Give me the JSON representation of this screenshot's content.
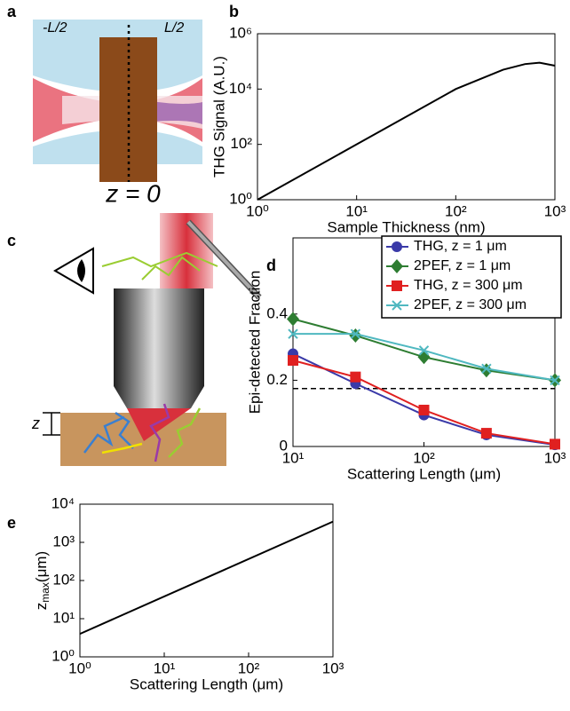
{
  "diagrams": [
    {
      "label": "a",
      "left_label": "-L/2",
      "right_label": "L/2",
      "bottom_label": "z = 0"
    },
    {
      "label": "c",
      "depth_label": "z"
    }
  ],
  "chart_data": [
    {
      "type": "line",
      "label": "b",
      "xlabel": "Sample Thickness (nm)",
      "ylabel": "THG Signal (A.U.)",
      "xscale": "log",
      "yscale": "log",
      "x": [
        1,
        10,
        100,
        300,
        500,
        700,
        1000
      ],
      "series": [
        {
          "color": "#000000",
          "values": [
            1,
            100,
            10000,
            50000,
            80000,
            90000,
            70000
          ]
        }
      ],
      "xlim": [
        1,
        1000
      ],
      "ylim": [
        1,
        1000000
      ],
      "xticks": [
        {
          "value": 1,
          "label": "10⁰"
        },
        {
          "value": 10,
          "label": "10¹"
        },
        {
          "value": 100,
          "label": "10²"
        },
        {
          "value": 1000,
          "label": "10³"
        }
      ],
      "yticks": [
        {
          "value": 1,
          "label": "10⁰"
        },
        {
          "value": 100,
          "label": "10²"
        },
        {
          "value": 10000,
          "label": "10⁴"
        },
        {
          "value": 1000000,
          "label": "10⁶"
        }
      ]
    },
    {
      "type": "line",
      "label": "d",
      "xlabel": "Scattering Length (μm)",
      "ylabel": "Epi-detected Fraction",
      "xscale": "log",
      "yscale": "linear",
      "x": [
        10,
        30,
        100,
        300,
        1000
      ],
      "series": [
        {
          "name": "THG, z = 1 μm",
          "color": "#3a3aa8",
          "marker": "circle",
          "values": [
            0.28,
            0.19,
            0.095,
            0.035,
            0.005
          ]
        },
        {
          "name": "2PEF, z = 1 μm",
          "color": "#2e7d32",
          "marker": "diamond",
          "values": [
            0.385,
            0.335,
            0.27,
            0.23,
            0.2
          ]
        },
        {
          "name": "THG, z = 300 μm",
          "color": "#e02020",
          "marker": "square",
          "values": [
            0.26,
            0.21,
            0.11,
            0.04,
            0.007
          ]
        },
        {
          "name": "2PEF, z = 300 μm",
          "color": "#4fb8c0",
          "marker": "x",
          "values": [
            0.34,
            0.34,
            0.29,
            0.235,
            0.2
          ]
        }
      ],
      "hline": 0.175,
      "xlim": [
        10,
        1000
      ],
      "ylim": [
        0,
        0.63
      ],
      "xticks": [
        {
          "value": 10,
          "label": "10¹"
        },
        {
          "value": 100,
          "label": "10²"
        },
        {
          "value": 1000,
          "label": "10³"
        }
      ],
      "yticks": [
        0,
        0.2,
        0.4
      ],
      "legend": "top-right"
    },
    {
      "type": "line",
      "label": "e",
      "xlabel": "Scattering Length (μm)",
      "ylabel": {
        "main": "z",
        "sub": "max",
        "rest": "(μm)"
      },
      "xscale": "log",
      "yscale": "log",
      "x": [
        1,
        1000
      ],
      "series": [
        {
          "color": "#000000",
          "values": [
            4,
            3500
          ]
        }
      ],
      "xlim": [
        1,
        1000
      ],
      "ylim": [
        1,
        10000
      ],
      "xticks": [
        {
          "value": 1,
          "label": "10⁰"
        },
        {
          "value": 10,
          "label": "10¹"
        },
        {
          "value": 100,
          "label": "10²"
        },
        {
          "value": 1000,
          "label": "10³"
        }
      ],
      "yticks": [
        {
          "value": 1,
          "label": "10⁰"
        },
        {
          "value": 10,
          "label": "10¹"
        },
        {
          "value": 100,
          "label": "10²"
        },
        {
          "value": 1000,
          "label": "10³"
        },
        {
          "value": 10000,
          "label": "10⁴"
        }
      ]
    }
  ]
}
